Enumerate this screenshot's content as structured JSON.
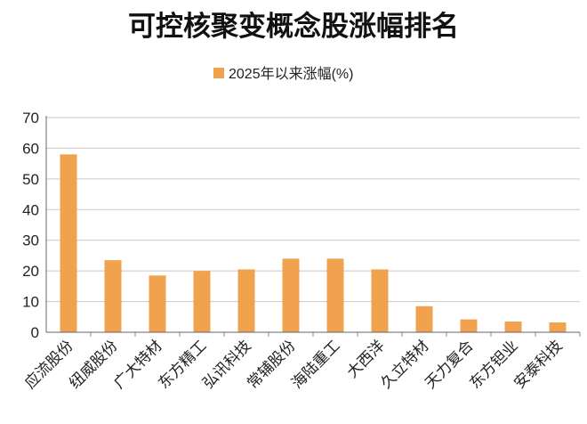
{
  "chart_data": {
    "type": "bar",
    "title": "可控核聚变概念股涨幅排名",
    "legend": {
      "label": "2025年以来涨幅(%)",
      "position": "top"
    },
    "series": [
      {
        "name": "2025年以来涨幅(%)",
        "color": "#f0a24f",
        "values": [
          58,
          23.5,
          18.5,
          20,
          20.5,
          24,
          24,
          20.5,
          8.5,
          4.2,
          3.5,
          3.2
        ]
      }
    ],
    "categories": [
      "应流股份",
      "纽威股份",
      "广大特材",
      "东方精工",
      "弘讯科技",
      "常辅股份",
      "海陆重工",
      "大西洋",
      "久立特材",
      "天力复合",
      "东方钽业",
      "安泰科技"
    ],
    "ylim": [
      0,
      70
    ],
    "yticks": [
      0,
      10,
      20,
      30,
      40,
      50,
      60,
      70
    ],
    "grid": true,
    "xlabel": "",
    "ylabel": ""
  }
}
